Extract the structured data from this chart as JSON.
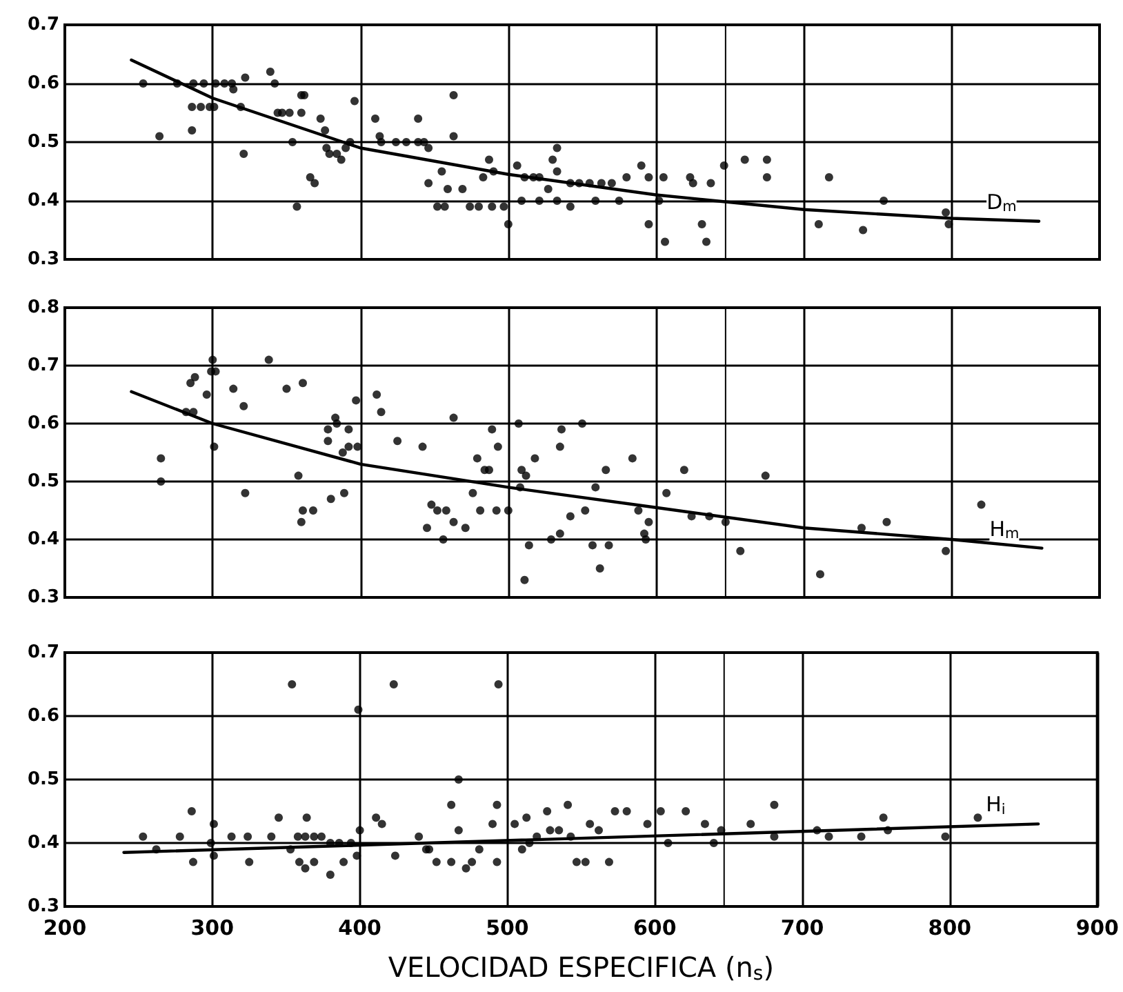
{
  "chart_data": [
    {
      "type": "scatter",
      "xlim": [
        200,
        900
      ],
      "ylim": [
        0.3,
        0.7
      ],
      "xticks": [
        200,
        300,
        400,
        500,
        600,
        700,
        800,
        900
      ],
      "yticks": [
        0.3,
        0.4,
        0.5,
        0.6,
        0.7
      ],
      "tick_labels": "y",
      "grid": true,
      "marker": "circle",
      "annotations": [
        "D$_{m}$"
      ],
      "ref_lines": [
        {
          "axis": "x",
          "value": 647,
          "color": "#000000"
        }
      ],
      "series": [
        {
          "color": "#000000",
          "x": [
            253,
            264,
            276,
            287,
            294,
            302,
            308,
            313,
            314,
            322,
            286,
            292,
            298,
            301,
            286,
            319,
            321,
            339,
            342,
            344,
            347,
            352,
            360,
            362,
            360,
            354,
            357,
            366,
            369,
            373,
            376,
            377,
            379,
            384,
            387,
            390,
            393,
            396,
            410,
            413,
            414,
            424,
            431,
            439,
            443,
            439,
            446,
            446,
            455,
            452,
            457,
            459,
            463,
            463,
            469,
            474,
            480,
            483,
            487,
            489,
            497,
            490,
            500,
            506,
            509,
            511,
            517,
            521,
            527,
            530,
            533,
            533,
            521,
            533,
            542,
            542,
            548,
            555,
            563,
            570,
            559,
            575,
            580,
            590,
            595,
            605,
            595,
            602,
            606,
            623,
            625,
            637,
            631,
            634,
            646,
            660,
            675,
            675,
            710,
            717,
            740,
            754,
            796,
            798
          ],
          "values": [
            0.6,
            0.51,
            0.6,
            0.6,
            0.6,
            0.6,
            0.6,
            0.6,
            0.59,
            0.61,
            0.56,
            0.56,
            0.56,
            0.56,
            0.52,
            0.56,
            0.48,
            0.62,
            0.6,
            0.55,
            0.55,
            0.55,
            0.58,
            0.58,
            0.55,
            0.5,
            0.39,
            0.44,
            0.43,
            0.54,
            0.52,
            0.49,
            0.48,
            0.48,
            0.47,
            0.49,
            0.5,
            0.57,
            0.54,
            0.51,
            0.5,
            0.5,
            0.5,
            0.5,
            0.5,
            0.54,
            0.49,
            0.43,
            0.45,
            0.39,
            0.39,
            0.42,
            0.58,
            0.51,
            0.42,
            0.39,
            0.39,
            0.44,
            0.47,
            0.39,
            0.39,
            0.45,
            0.36,
            0.46,
            0.4,
            0.44,
            0.44,
            0.44,
            0.42,
            0.47,
            0.49,
            0.45,
            0.4,
            0.4,
            0.39,
            0.43,
            0.43,
            0.43,
            0.43,
            0.43,
            0.4,
            0.4,
            0.44,
            0.46,
            0.44,
            0.44,
            0.36,
            0.4,
            0.33,
            0.44,
            0.43,
            0.43,
            0.36,
            0.33,
            0.46,
            0.47,
            0.47,
            0.44,
            0.36,
            0.44,
            0.35,
            0.4,
            0.38,
            0.36
          ]
        },
        {
          "type": "line",
          "marker": "none",
          "color": "#000000",
          "x": [
            245,
            300,
            400,
            500,
            600,
            700,
            800,
            859
          ],
          "values": [
            0.64,
            0.575,
            0.49,
            0.445,
            0.41,
            0.385,
            0.37,
            0.365
          ]
        }
      ]
    },
    {
      "type": "scatter",
      "xlim": [
        200,
        900
      ],
      "ylim": [
        0.3,
        0.8
      ],
      "xticks": [
        200,
        300,
        400,
        500,
        600,
        700,
        800,
        900
      ],
      "yticks": [
        0.3,
        0.4,
        0.5,
        0.6,
        0.7,
        0.8
      ],
      "tick_labels": "y",
      "grid": true,
      "marker": "circle",
      "annotations": [
        "H$_{m}$"
      ],
      "ref_lines": [
        {
          "axis": "x",
          "value": 647,
          "color": "#000000"
        }
      ],
      "series": [
        {
          "color": "#000000",
          "x": [
            265,
            265,
            282,
            287,
            285,
            288,
            299,
            302,
            300,
            296,
            301,
            314,
            321,
            322,
            338,
            350,
            361,
            358,
            361,
            368,
            360,
            378,
            378,
            383,
            384,
            380,
            388,
            389,
            392,
            392,
            397,
            398,
            411,
            414,
            425,
            442,
            445,
            448,
            452,
            458,
            456,
            463,
            463,
            471,
            476,
            479,
            481,
            484,
            487,
            489,
            493,
            492,
            500,
            507,
            508,
            509,
            512,
            511,
            514,
            518,
            529,
            535,
            535,
            536,
            542,
            550,
            552,
            559,
            566,
            584,
            557,
            568,
            562,
            588,
            592,
            593,
            595,
            607,
            619,
            624,
            636,
            647,
            657,
            674,
            711,
            739,
            756,
            796,
            820
          ],
          "values": [
            0.54,
            0.5,
            0.62,
            0.62,
            0.67,
            0.68,
            0.69,
            0.69,
            0.71,
            0.65,
            0.56,
            0.66,
            0.63,
            0.48,
            0.71,
            0.66,
            0.67,
            0.51,
            0.45,
            0.45,
            0.43,
            0.59,
            0.57,
            0.61,
            0.6,
            0.47,
            0.55,
            0.48,
            0.59,
            0.56,
            0.64,
            0.56,
            0.65,
            0.62,
            0.57,
            0.56,
            0.42,
            0.46,
            0.45,
            0.45,
            0.4,
            0.61,
            0.43,
            0.42,
            0.48,
            0.54,
            0.45,
            0.52,
            0.52,
            0.59,
            0.56,
            0.45,
            0.45,
            0.6,
            0.49,
            0.52,
            0.51,
            0.33,
            0.39,
            0.54,
            0.4,
            0.41,
            0.56,
            0.59,
            0.44,
            0.6,
            0.45,
            0.49,
            0.52,
            0.54,
            0.39,
            0.39,
            0.35,
            0.45,
            0.41,
            0.4,
            0.43,
            0.48,
            0.52,
            0.44,
            0.44,
            0.43,
            0.38,
            0.51,
            0.34,
            0.42,
            0.43,
            0.38,
            0.46
          ]
        },
        {
          "type": "line",
          "marker": "none",
          "color": "#000000",
          "x": [
            245,
            300,
            400,
            500,
            600,
            700,
            800,
            861
          ],
          "values": [
            0.655,
            0.6,
            0.53,
            0.49,
            0.455,
            0.42,
            0.4,
            0.385
          ]
        }
      ]
    },
    {
      "type": "scatter",
      "xlim": [
        200,
        900
      ],
      "ylim": [
        0.3,
        0.7
      ],
      "xticks": [
        200,
        300,
        400,
        500,
        600,
        700,
        800,
        900
      ],
      "yticks": [
        0.3,
        0.4,
        0.5,
        0.6,
        0.7
      ],
      "grid": true,
      "marker": "circle",
      "xlabel": "VELOCIDAD ESPECIFICA (n$_{s}$)",
      "annotations": [
        "H$_{i}$"
      ],
      "ref_lines": [
        {
          "axis": "x",
          "value": 647,
          "color": "#000000"
        }
      ],
      "series": [
        {
          "color": "#000000",
          "x": [
            253,
            262,
            278,
            286,
            287,
            299,
            301,
            301,
            313,
            324,
            325,
            340,
            345,
            353,
            358,
            364,
            363,
            369,
            374,
            380,
            386,
            394,
            359,
            363,
            369,
            380,
            389,
            398,
            400,
            399,
            354,
            423,
            494,
            411,
            415,
            424,
            440,
            445,
            447,
            452,
            462,
            462,
            467,
            467,
            472,
            476,
            481,
            490,
            493,
            493,
            505,
            513,
            510,
            527,
            541,
            515,
            520,
            529,
            535,
            543,
            547,
            553,
            569,
            556,
            562,
            573,
            581,
            604,
            621,
            595,
            609,
            634,
            645,
            640,
            665,
            681,
            681,
            710,
            718,
            740,
            755,
            758,
            797,
            819
          ],
          "values": [
            0.41,
            0.39,
            0.41,
            0.45,
            0.37,
            0.4,
            0.38,
            0.43,
            0.41,
            0.41,
            0.37,
            0.41,
            0.44,
            0.39,
            0.41,
            0.44,
            0.41,
            0.41,
            0.41,
            0.4,
            0.4,
            0.4,
            0.37,
            0.36,
            0.37,
            0.35,
            0.37,
            0.38,
            0.42,
            0.61,
            0.65,
            0.65,
            0.65,
            0.44,
            0.43,
            0.38,
            0.41,
            0.39,
            0.39,
            0.37,
            0.37,
            0.46,
            0.5,
            0.42,
            0.36,
            0.37,
            0.39,
            0.43,
            0.46,
            0.37,
            0.43,
            0.44,
            0.39,
            0.45,
            0.46,
            0.4,
            0.41,
            0.42,
            0.42,
            0.41,
            0.37,
            0.37,
            0.37,
            0.43,
            0.42,
            0.45,
            0.45,
            0.45,
            0.45,
            0.43,
            0.4,
            0.43,
            0.42,
            0.4,
            0.43,
            0.46,
            0.41,
            0.42,
            0.41,
            0.41,
            0.44,
            0.42,
            0.41,
            0.44
          ]
        },
        {
          "type": "line",
          "marker": "none",
          "color": "#000000",
          "x": [
            240,
            860
          ],
          "values": [
            0.385,
            0.43
          ]
        }
      ]
    }
  ]
}
